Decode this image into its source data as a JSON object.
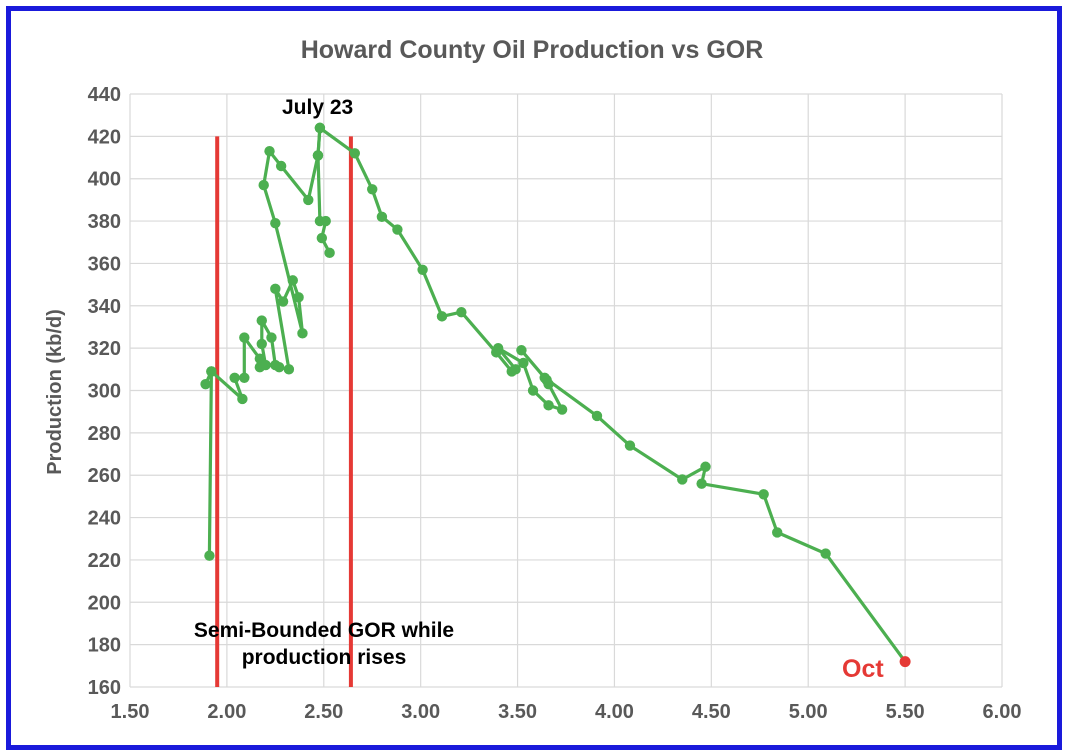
{
  "chart_data": {
    "type": "scatter",
    "title": "Howard County Oil Production vs GOR",
    "xlabel": "",
    "ylabel": "Production (kb/d)",
    "xlim": [
      1.5,
      6.0
    ],
    "ylim": [
      160,
      440
    ],
    "x_ticks": [
      "1.50",
      "2.00",
      "2.50",
      "3.00",
      "3.50",
      "4.00",
      "4.50",
      "5.00",
      "5.50",
      "6.00"
    ],
    "y_ticks": [
      "160",
      "180",
      "200",
      "220",
      "240",
      "260",
      "280",
      "300",
      "320",
      "340",
      "360",
      "380",
      "400",
      "420",
      "440"
    ],
    "grid": true,
    "series": [
      {
        "color": "#4caf50",
        "points": [
          [
            1.89,
            303
          ],
          [
            1.92,
            309
          ],
          [
            1.91,
            222
          ],
          [
            1.92,
            309
          ],
          [
            2.08,
            296
          ],
          [
            2.04,
            306
          ],
          [
            2.09,
            306
          ],
          [
            2.09,
            325
          ],
          [
            2.17,
            315
          ],
          [
            2.17,
            311
          ],
          [
            2.2,
            312
          ],
          [
            2.18,
            322
          ],
          [
            2.18,
            333
          ],
          [
            2.23,
            325
          ],
          [
            2.25,
            312
          ],
          [
            2.27,
            311
          ],
          [
            2.32,
            310
          ],
          [
            2.25,
            348
          ],
          [
            2.29,
            342
          ],
          [
            2.34,
            352
          ],
          [
            2.37,
            344
          ],
          [
            2.39,
            327
          ],
          [
            2.25,
            379
          ],
          [
            2.19,
            397
          ],
          [
            2.22,
            413
          ],
          [
            2.28,
            406
          ],
          [
            2.42,
            390
          ],
          [
            2.47,
            411
          ],
          [
            2.48,
            424
          ],
          [
            2.66,
            412
          ],
          [
            2.75,
            395
          ],
          [
            2.8,
            382
          ],
          [
            2.88,
            376
          ],
          [
            3.01,
            357
          ],
          [
            3.11,
            335
          ],
          [
            3.21,
            337
          ],
          [
            3.39,
            318
          ],
          [
            3.47,
            309
          ],
          [
            3.49,
            310
          ],
          [
            3.4,
            320
          ],
          [
            3.53,
            313
          ],
          [
            3.58,
            300
          ],
          [
            3.66,
            293
          ],
          [
            3.73,
            291
          ],
          [
            3.66,
            303
          ],
          [
            3.65,
            305
          ],
          [
            3.52,
            319
          ],
          [
            3.64,
            306
          ],
          [
            3.91,
            288
          ],
          [
            4.08,
            274
          ],
          [
            4.35,
            258
          ],
          [
            4.47,
            264
          ],
          [
            4.45,
            256
          ],
          [
            4.77,
            251
          ],
          [
            4.84,
            233
          ],
          [
            5.09,
            223
          ],
          [
            5.5,
            172
          ]
        ],
        "side_branch": [
          [
            2.48,
            424
          ],
          [
            2.47,
            411
          ],
          [
            2.48,
            380
          ],
          [
            2.51,
            380
          ],
          [
            2.49,
            372
          ],
          [
            2.53,
            365
          ]
        ]
      }
    ],
    "highlight_point": {
      "x": 5.5,
      "y": 172,
      "color": "#e53935",
      "label": "Oct"
    },
    "vertical_lines": [
      {
        "x": 1.95,
        "y_from": 160,
        "y_to": 420,
        "color": "#e53935"
      },
      {
        "x": 2.64,
        "y_from": 160,
        "y_to": 420,
        "color": "#e53935"
      }
    ],
    "annotations": {
      "peak": "July 23",
      "bounded_line1": "Semi-Bounded GOR while",
      "bounded_line2": "production rises"
    }
  }
}
